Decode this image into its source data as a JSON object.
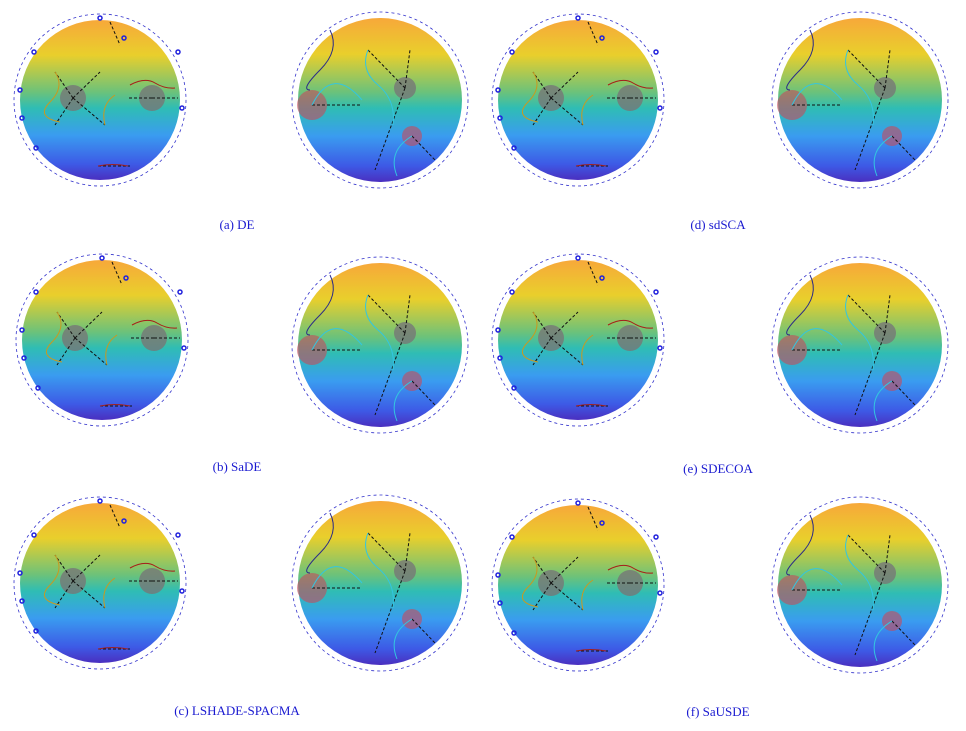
{
  "captions": [
    "(a) DE",
    "(d) sdSCA",
    "(b) SaDE",
    "(e) SDECOA",
    "(c) LSHADE-SPACMA",
    "(f) SaUSDE"
  ]
}
